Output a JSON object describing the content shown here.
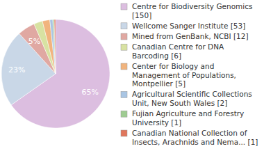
{
  "chart_data": {
    "type": "pie",
    "categories": [
      "Centre for Biodiversity Genomics [150]",
      "Wellcome Sanger Institute [53]",
      "Mined from GenBank, NCBI [12]",
      "Canadian Centre for DNA Barcoding [6]",
      "Center for Biology and Management of Populations, Montpellier [5]",
      "Agricultural Scientific Collections Unit, New South Wales [2]",
      "Fujian Agriculture and Forestry University [1]",
      "Canadian National Collection of Insects, Arachnids and Nema... [1]"
    ],
    "values": [
      65.2,
      23.0,
      5.2,
      2.6,
      2.2,
      0.9,
      0.4,
      0.4
    ],
    "value_labels": [
      "65%",
      "23%",
      "5%",
      null,
      null,
      null,
      null,
      null
    ],
    "data_labels": true,
    "legend": "right",
    "colors": [
      "#dcbee0",
      "#c9d7e7",
      "#e0a8a2",
      "#d8e2a2",
      "#f1b47e",
      "#a9c5e3",
      "#9fcc92",
      "#e0765c"
    ]
  }
}
